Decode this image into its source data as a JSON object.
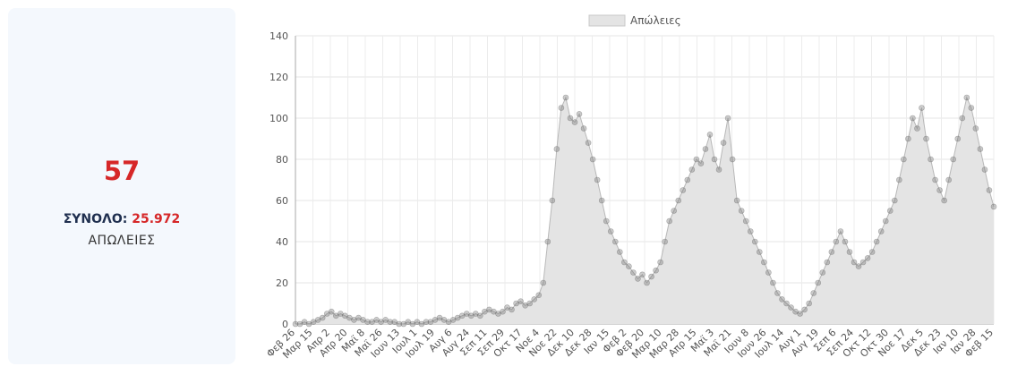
{
  "stat": {
    "today_value": "57",
    "total_label": "ΣΥΝΟΛΟ:",
    "total_value": "25.972",
    "caption": "ΑΠΩΛΕΙΕΣ"
  },
  "colors": {
    "accent": "#d62728",
    "card_bg": "#f4f8fd",
    "fill": "#e4e4e4",
    "line": "#b8b8b8",
    "point": "rgba(110,110,110,0.35)"
  },
  "chart_data": {
    "type": "area",
    "legend": "Απώλειες",
    "legend_position": "top",
    "ylim": [
      0,
      140
    ],
    "yticks": [
      0,
      20,
      40,
      60,
      80,
      100,
      120,
      140
    ],
    "grid": true,
    "x_tick_labels": [
      "Φεβ 26",
      "Μαρ 15",
      "Απρ 2",
      "Απρ 20",
      "Μαϊ 8",
      "Μαϊ 26",
      "Ιουν 13",
      "Ιουλ 1",
      "Ιουλ 19",
      "Αυγ 6",
      "Αυγ 24",
      "Σεπ 11",
      "Σεπ 29",
      "Οκτ 17",
      "Νοε 4",
      "Νοε 22",
      "Δεκ 10",
      "Δεκ 28",
      "Ιαν 15",
      "Φεβ 2",
      "Φεβ 20",
      "Μαρ 10",
      "Μαρ 28",
      "Απρ 15",
      "Μαϊ 3",
      "Μαϊ 21",
      "Ιουν 8",
      "Ιουν 26",
      "Ιουλ 14",
      "Αυγ 1",
      "Αυγ 19",
      "Σεπ 6",
      "Σεπ 24",
      "Οκτ 12",
      "Οκτ 30",
      "Νοε 17",
      "Δεκ 5",
      "Δεκ 23",
      "Ιαν 10",
      "Ιαν 28",
      "Φεβ 15"
    ],
    "series": [
      {
        "name": "Απώλειες",
        "values": [
          0,
          0,
          1,
          0,
          1,
          2,
          3,
          5,
          6,
          4,
          5,
          4,
          3,
          2,
          3,
          2,
          1,
          1,
          2,
          1,
          2,
          1,
          1,
          0,
          0,
          1,
          0,
          1,
          0,
          1,
          1,
          2,
          3,
          2,
          1,
          2,
          3,
          4,
          5,
          4,
          5,
          4,
          6,
          7,
          6,
          5,
          6,
          8,
          7,
          10,
          11,
          9,
          10,
          12,
          14,
          20,
          40,
          60,
          85,
          105,
          110,
          100,
          98,
          102,
          95,
          88,
          80,
          70,
          60,
          50,
          45,
          40,
          35,
          30,
          28,
          25,
          22,
          24,
          20,
          23,
          26,
          30,
          40,
          50,
          55,
          60,
          65,
          70,
          75,
          80,
          78,
          85,
          92,
          80,
          75,
          88,
          100,
          80,
          60,
          55,
          50,
          45,
          40,
          35,
          30,
          25,
          20,
          15,
          12,
          10,
          8,
          6,
          5,
          7,
          10,
          15,
          20,
          25,
          30,
          35,
          40,
          45,
          40,
          35,
          30,
          28,
          30,
          32,
          35,
          40,
          45,
          50,
          55,
          60,
          70,
          80,
          90,
          100,
          95,
          105,
          90,
          80,
          70,
          65,
          60,
          70,
          80,
          90,
          100,
          110,
          105,
          95,
          85,
          75,
          65,
          57
        ]
      }
    ]
  }
}
